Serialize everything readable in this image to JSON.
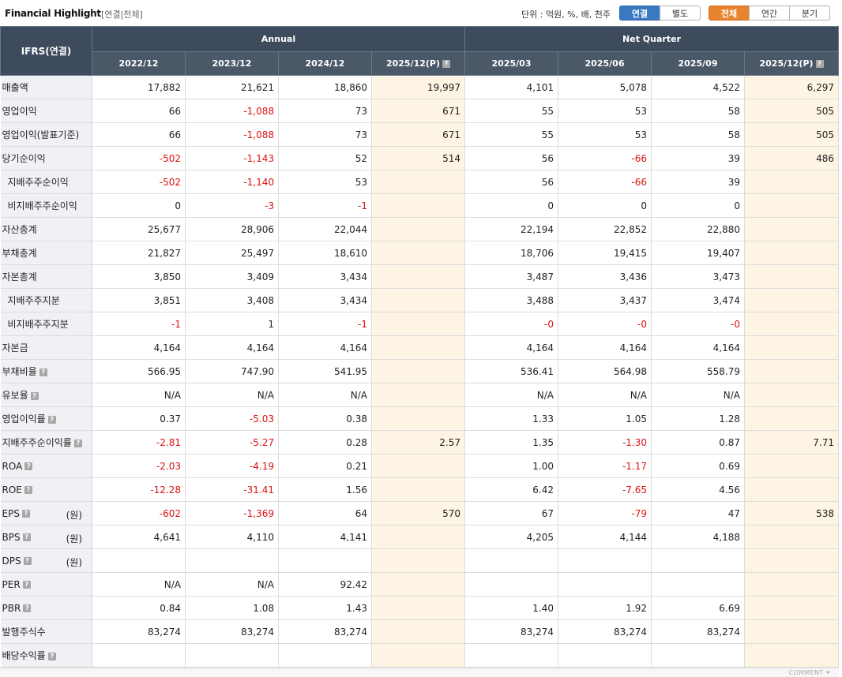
{
  "header": {
    "title": "Financial Highlight",
    "subtitle": "[연결|전체]",
    "unit_label": "단위 : 억원, %, 배, 천주",
    "consolidation_toggle": [
      {
        "label": "연결",
        "active": true
      },
      {
        "label": "별도",
        "active": false
      }
    ],
    "period_toggle": [
      {
        "label": "전체",
        "active": true
      },
      {
        "label": "연간",
        "active": false
      },
      {
        "label": "분기",
        "active": false
      }
    ]
  },
  "table": {
    "corner_label": "IFRS(연결)",
    "groups": [
      "Annual",
      "Net Quarter"
    ],
    "columns": [
      "2022/12",
      "2023/12",
      "2024/12",
      "2025/12(P)",
      "2025/03",
      "2025/06",
      "2025/09",
      "2025/12(P)"
    ],
    "rows": [
      {
        "label": "매출액",
        "values": [
          "17,882",
          "21,621",
          "18,860",
          "19,997",
          "4,101",
          "5,078",
          "4,522",
          "6,297"
        ]
      },
      {
        "label": "영업이익",
        "values": [
          "66",
          "-1,088",
          "73",
          "671",
          "55",
          "53",
          "58",
          "505"
        ]
      },
      {
        "label": "영업이익(발표기준)",
        "values": [
          "66",
          "-1,088",
          "73",
          "671",
          "55",
          "53",
          "58",
          "505"
        ]
      },
      {
        "label": "당기순이익",
        "values": [
          "-502",
          "-1,143",
          "52",
          "514",
          "56",
          "-66",
          "39",
          "486"
        ]
      },
      {
        "label": "지배주주순이익",
        "indent": true,
        "values": [
          "-502",
          "-1,140",
          "53",
          "",
          "56",
          "-66",
          "39",
          ""
        ]
      },
      {
        "label": "비지배주주순이익",
        "indent": true,
        "values": [
          "0",
          "-3",
          "-1",
          "",
          "0",
          "0",
          "0",
          ""
        ]
      },
      {
        "label": "자산총계",
        "values": [
          "25,677",
          "28,906",
          "22,044",
          "",
          "22,194",
          "22,852",
          "22,880",
          ""
        ]
      },
      {
        "label": "부채총계",
        "values": [
          "21,827",
          "25,497",
          "18,610",
          "",
          "18,706",
          "19,415",
          "19,407",
          ""
        ]
      },
      {
        "label": "자본총계",
        "values": [
          "3,850",
          "3,409",
          "3,434",
          "",
          "3,487",
          "3,436",
          "3,473",
          ""
        ]
      },
      {
        "label": "지배주주지분",
        "indent": true,
        "values": [
          "3,851",
          "3,408",
          "3,434",
          "",
          "3,488",
          "3,437",
          "3,474",
          ""
        ]
      },
      {
        "label": "비지배주주지분",
        "indent": true,
        "values": [
          "-1",
          "1",
          "-1",
          "",
          "-0",
          "-0",
          "-0",
          ""
        ]
      },
      {
        "label": "자본금",
        "values": [
          "4,164",
          "4,164",
          "4,164",
          "",
          "4,164",
          "4,164",
          "4,164",
          ""
        ]
      },
      {
        "label": "부채비율",
        "help": true,
        "values": [
          "566.95",
          "747.90",
          "541.95",
          "",
          "536.41",
          "564.98",
          "558.79",
          ""
        ]
      },
      {
        "label": "유보율",
        "help": true,
        "values": [
          "N/A",
          "N/A",
          "N/A",
          "",
          "N/A",
          "N/A",
          "N/A",
          ""
        ]
      },
      {
        "label": "영업이익률",
        "help": true,
        "values": [
          "0.37",
          "-5.03",
          "0.38",
          "",
          "1.33",
          "1.05",
          "1.28",
          ""
        ]
      },
      {
        "label": "지배주주순이익률",
        "help": true,
        "values": [
          "-2.81",
          "-5.27",
          "0.28",
          "2.57",
          "1.35",
          "-1.30",
          "0.87",
          "7.71"
        ]
      },
      {
        "label": "ROA",
        "help": true,
        "values": [
          "-2.03",
          "-4.19",
          "0.21",
          "",
          "1.00",
          "-1.17",
          "0.69",
          ""
        ]
      },
      {
        "label": "ROE",
        "help": true,
        "values": [
          "-12.28",
          "-31.41",
          "1.56",
          "",
          "6.42",
          "-7.65",
          "4.56",
          ""
        ]
      },
      {
        "label": "EPS",
        "help": true,
        "unit": "(원)",
        "values": [
          "-602",
          "-1,369",
          "64",
          "570",
          "67",
          "-79",
          "47",
          "538"
        ]
      },
      {
        "label": "BPS",
        "help": true,
        "unit": "(원)",
        "values": [
          "4,641",
          "4,110",
          "4,141",
          "",
          "4,205",
          "4,144",
          "4,188",
          ""
        ]
      },
      {
        "label": "DPS",
        "help": true,
        "unit": "(원)",
        "values": [
          "",
          "",
          "",
          "",
          "",
          "",
          "",
          ""
        ]
      },
      {
        "label": "PER",
        "help": true,
        "values": [
          "N/A",
          "N/A",
          "92.42",
          "",
          "",
          "",
          "",
          ""
        ]
      },
      {
        "label": "PBR",
        "help": true,
        "values": [
          "0.84",
          "1.08",
          "1.43",
          "",
          "1.40",
          "1.92",
          "6.69",
          ""
        ]
      },
      {
        "label": "발행주식수",
        "values": [
          "83,274",
          "83,274",
          "83,274",
          "",
          "83,274",
          "83,274",
          "83,274",
          ""
        ]
      },
      {
        "label": "배당수익률",
        "help": true,
        "values": [
          "",
          "",
          "",
          "",
          "",
          "",
          "",
          ""
        ]
      }
    ]
  },
  "footer": {
    "comment_label": "COMMENT ⏷"
  },
  "colors": {
    "header_bg": "#3d4b5c",
    "estimate_bg": "#fdf4e3",
    "negative": "#dd1111",
    "blue_active": "#3a79c2",
    "orange_active": "#e8832e"
  }
}
